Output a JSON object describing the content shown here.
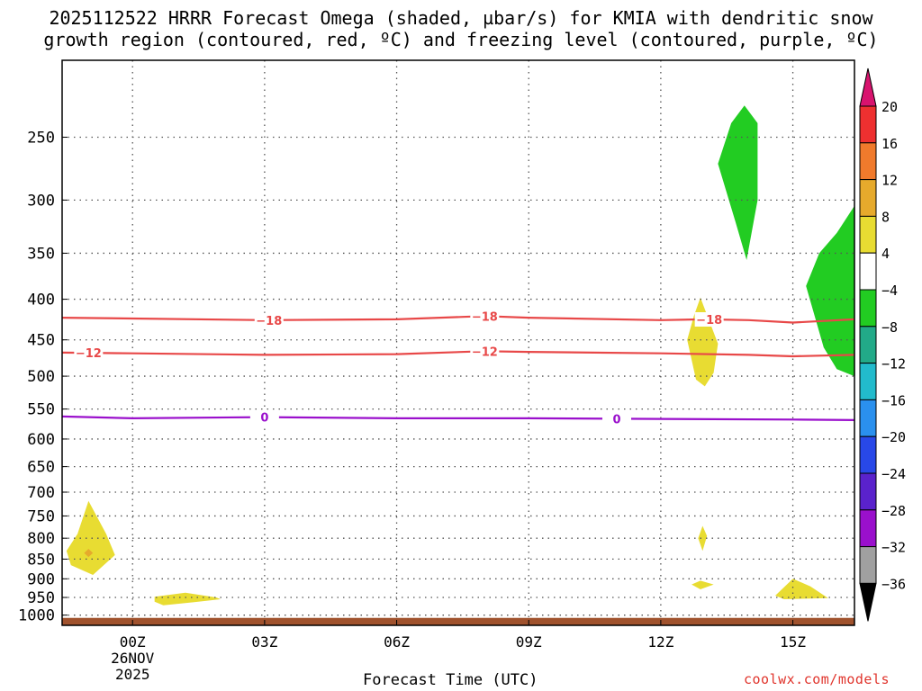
{
  "title": {
    "line1": "2025112522 HRRR Forecast Omega (shaded, µbar/s) for KMIA with dendritic snow",
    "line2": "growth region (contoured, red, ºC) and freezing level (contoured, purple, ºC)"
  },
  "xlabel": "Forecast Time (UTC)",
  "credit": "coolwx.com/models",
  "chart_data": {
    "type": "contour",
    "x_axis": {
      "range_hours": [
        -1.6,
        16.4
      ],
      "ticks": [
        {
          "hour": 0,
          "label": "00Z",
          "sub1": "26NOV",
          "sub2": "2025"
        },
        {
          "hour": 3,
          "label": "03Z",
          "sub1": "",
          "sub2": ""
        },
        {
          "hour": 6,
          "label": "06Z",
          "sub1": "",
          "sub2": ""
        },
        {
          "hour": 9,
          "label": "09Z",
          "sub1": "",
          "sub2": ""
        },
        {
          "hour": 12,
          "label": "12Z",
          "sub1": "",
          "sub2": ""
        },
        {
          "hour": 15,
          "label": "15Z",
          "sub1": "",
          "sub2": ""
        }
      ]
    },
    "y_axis": {
      "scale": "log",
      "range_hpa": [
        1030,
        200
      ],
      "ticks": [
        250,
        300,
        350,
        400,
        450,
        500,
        550,
        600,
        650,
        700,
        750,
        800,
        850,
        900,
        950,
        1000
      ]
    },
    "colorbar": {
      "labels": [
        "20",
        "16",
        "12",
        "8",
        "4",
        "−4",
        "−8",
        "−12",
        "−16",
        "−20",
        "−24",
        "−28",
        "−32",
        "−36"
      ],
      "colors": [
        "#d8136e",
        "#ee3030",
        "#f07a2c",
        "#e6aa2c",
        "#e8dc32",
        "#ffffff",
        "#22cc22",
        "#22aa88",
        "#22bbcc",
        "#2a90ee",
        "#2848e8",
        "#5a22cc",
        "#9a10cc",
        "#a0a0a0",
        "#000000"
      ]
    },
    "isotherms": [
      {
        "name": "-18C",
        "color": "#e84848",
        "label": "−18",
        "points": [
          [
            -1.6,
            422
          ],
          [
            0,
            423
          ],
          [
            3,
            425
          ],
          [
            6,
            424
          ],
          [
            7.5,
            421
          ],
          [
            8,
            420
          ],
          [
            9,
            422
          ],
          [
            12,
            425
          ],
          [
            13,
            424
          ],
          [
            14,
            425
          ],
          [
            15,
            428
          ],
          [
            16.4,
            424
          ]
        ],
        "label_hours": [
          3.1,
          8.0,
          13.1
        ]
      },
      {
        "name": "-12C",
        "color": "#e84848",
        "label": "−12",
        "points": [
          [
            -1.6,
            467
          ],
          [
            0,
            468
          ],
          [
            3,
            470
          ],
          [
            6,
            469
          ],
          [
            8,
            465
          ],
          [
            9,
            466
          ],
          [
            12,
            468
          ],
          [
            14,
            470
          ],
          [
            15,
            472
          ],
          [
            16.4,
            470
          ]
        ],
        "label_hours": [
          -1.0,
          8.0
        ]
      },
      {
        "name": "0C",
        "color": "#9a10cc",
        "label": "0",
        "points": [
          [
            -1.6,
            562
          ],
          [
            0,
            565
          ],
          [
            3,
            563
          ],
          [
            6,
            565
          ],
          [
            9,
            565
          ],
          [
            12,
            566
          ],
          [
            15,
            567
          ],
          [
            16.4,
            568
          ]
        ],
        "label_hours": [
          3.0,
          11.0
        ]
      }
    ],
    "omega_regions": [
      {
        "value": "4",
        "color": "#e8dc32",
        "points": [
          [
            -1.0,
            718
          ],
          [
            -0.6,
            790
          ],
          [
            -0.4,
            840
          ],
          [
            -0.9,
            890
          ],
          [
            -1.4,
            865
          ],
          [
            -1.5,
            830
          ],
          [
            -1.25,
            790
          ]
        ]
      },
      {
        "value": "8",
        "color": "#e6aa2c",
        "points": [
          [
            -1.0,
            825
          ],
          [
            -0.9,
            835
          ],
          [
            -1.0,
            845
          ],
          [
            -1.1,
            835
          ]
        ]
      },
      {
        "value": "4",
        "color": "#e8dc32",
        "points": [
          [
            0.5,
            948
          ],
          [
            1.2,
            937
          ],
          [
            1.9,
            950
          ],
          [
            2.0,
            955
          ],
          [
            1.4,
            963
          ],
          [
            0.7,
            972
          ],
          [
            0.5,
            962
          ]
        ]
      },
      {
        "value": "4",
        "color": "#e8dc32",
        "points": [
          [
            12.9,
            398
          ],
          [
            13.3,
            455
          ],
          [
            13.2,
            495
          ],
          [
            13.0,
            515
          ],
          [
            12.8,
            505
          ],
          [
            12.6,
            450
          ],
          [
            12.75,
            420
          ]
        ]
      },
      {
        "value": "-4",
        "color": "#22cc22",
        "points": [
          [
            13.9,
            228
          ],
          [
            14.2,
            240
          ],
          [
            14.2,
            300
          ],
          [
            13.95,
            357
          ],
          [
            13.7,
            320
          ],
          [
            13.3,
            270
          ],
          [
            13.6,
            240
          ]
        ]
      },
      {
        "value": "4",
        "color": "#e8dc32",
        "points": [
          [
            12.95,
            772
          ],
          [
            13.05,
            795
          ],
          [
            12.95,
            830
          ],
          [
            12.85,
            800
          ]
        ]
      },
      {
        "value": "4",
        "color": "#e8dc32",
        "points": [
          [
            12.9,
            905
          ],
          [
            13.2,
            915
          ],
          [
            12.9,
            928
          ],
          [
            12.7,
            915
          ]
        ]
      },
      {
        "value": "4",
        "color": "#e8dc32",
        "points": [
          [
            15.0,
            900
          ],
          [
            15.4,
            920
          ],
          [
            15.8,
            952
          ],
          [
            14.8,
            955
          ],
          [
            14.6,
            945
          ]
        ]
      },
      {
        "value": "-4",
        "color": "#22cc22",
        "points": [
          [
            16.4,
            305
          ],
          [
            16.4,
            500
          ],
          [
            16.0,
            490
          ],
          [
            15.7,
            460
          ],
          [
            15.3,
            385
          ],
          [
            15.6,
            350
          ],
          [
            16.0,
            330
          ]
        ]
      }
    ],
    "ground": {
      "color": "#a0522d",
      "from_hpa": 1008
    }
  }
}
